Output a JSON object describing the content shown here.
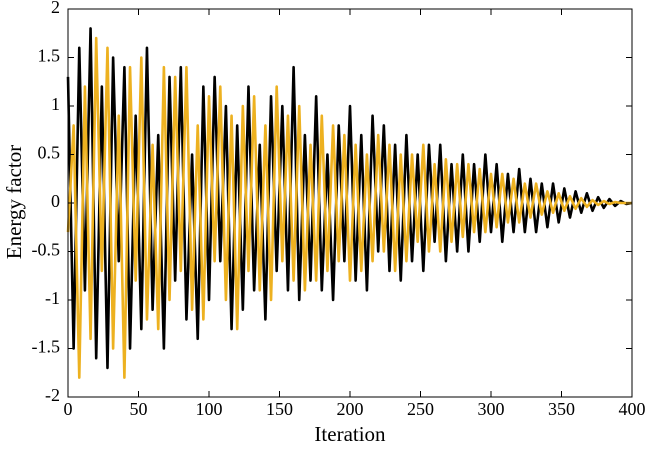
{
  "chart_data": {
    "type": "line",
    "xlabel": "Iteration",
    "ylabel": "Energy factor",
    "xlim": [
      0,
      400
    ],
    "xticks": [
      0,
      50,
      100,
      150,
      200,
      250,
      300,
      350,
      400
    ],
    "ylim": [
      -2,
      2
    ],
    "yticks": [
      -2,
      -1.5,
      -1,
      -0.5,
      0,
      0.5,
      1,
      1.5,
      2
    ],
    "x": [
      0,
      4,
      8,
      12,
      16,
      20,
      24,
      28,
      32,
      36,
      40,
      44,
      48,
      52,
      56,
      60,
      64,
      68,
      72,
      76,
      80,
      84,
      88,
      92,
      96,
      100,
      104,
      108,
      112,
      116,
      120,
      124,
      128,
      132,
      136,
      140,
      144,
      148,
      152,
      156,
      160,
      164,
      168,
      172,
      176,
      180,
      184,
      188,
      192,
      196,
      200,
      204,
      208,
      212,
      216,
      220,
      224,
      228,
      232,
      236,
      240,
      244,
      248,
      252,
      256,
      260,
      264,
      268,
      272,
      276,
      280,
      284,
      288,
      292,
      296,
      300,
      304,
      308,
      312,
      316,
      320,
      324,
      328,
      332,
      336,
      340,
      344,
      348,
      352,
      356,
      360,
      364,
      368,
      372,
      376,
      380,
      384,
      388,
      392,
      396,
      400
    ],
    "series": [
      {
        "color": "#000000",
        "values": [
          1.3,
          -1.5,
          1.6,
          -0.9,
          1.8,
          -1.6,
          1.2,
          -1.7,
          1.5,
          -0.6,
          1.4,
          -1.5,
          0.9,
          -1.3,
          1.6,
          -1.1,
          0.7,
          -1.5,
          1.3,
          -0.8,
          1.4,
          -1.2,
          0.5,
          -1.4,
          1.2,
          -1.0,
          1.3,
          -0.6,
          1.0,
          -1.3,
          0.8,
          -1.1,
          1.2,
          -0.9,
          0.6,
          -1.2,
          1.1,
          -0.7,
          1.0,
          -0.9,
          1.4,
          -1.0,
          0.7,
          -0.8,
          1.1,
          -0.9,
          0.5,
          -1.0,
          0.8,
          -0.6,
          1.0,
          -0.8,
          0.7,
          -0.9,
          0.9,
          -0.5,
          0.8,
          -0.7,
          0.6,
          -0.8,
          0.7,
          -0.6,
          0.5,
          -0.7,
          0.6,
          -0.4,
          0.6,
          -0.6,
          0.4,
          -0.5,
          0.5,
          -0.5,
          0.4,
          -0.4,
          0.5,
          -0.3,
          0.4,
          -0.4,
          0.3,
          -0.3,
          0.35,
          -0.3,
          0.25,
          -0.3,
          0.2,
          -0.25,
          0.2,
          -0.2,
          0.15,
          -0.15,
          0.12,
          -0.1,
          0.1,
          -0.08,
          0.06,
          -0.05,
          0.04,
          -0.03,
          0.02,
          -0.01,
          0
        ]
      },
      {
        "color": "#EDB120",
        "values": [
          -0.3,
          0.8,
          -1.8,
          1.2,
          -1.4,
          1.7,
          -0.7,
          1.6,
          -1.5,
          0.9,
          -1.8,
          1.4,
          -0.8,
          1.5,
          -1.2,
          0.6,
          -1.3,
          1.4,
          -1.0,
          1.3,
          -0.7,
          1.4,
          -1.1,
          0.8,
          -1.2,
          1.1,
          -0.6,
          1.2,
          -1.0,
          0.9,
          -1.3,
          1.0,
          -0.7,
          1.1,
          -0.9,
          0.8,
          -1.0,
          1.2,
          -0.6,
          0.9,
          -0.8,
          1.0,
          -0.9,
          0.6,
          -0.8,
          0.9,
          -0.7,
          0.8,
          -0.6,
          0.7,
          -0.8,
          0.6,
          -0.7,
          0.5,
          -0.6,
          0.7,
          -0.5,
          0.6,
          -0.7,
          0.5,
          -0.6,
          0.5,
          -0.4,
          0.6,
          -0.5,
          0.4,
          -0.5,
          0.45,
          -0.4,
          0.4,
          -0.35,
          0.4,
          -0.3,
          0.35,
          -0.3,
          0.3,
          -0.25,
          0.3,
          -0.2,
          0.25,
          -0.2,
          0.2,
          -0.15,
          0.2,
          -0.12,
          0.12,
          -0.1,
          0.1,
          -0.08,
          0.07,
          -0.06,
          0.05,
          -0.04,
          0.03,
          -0.02,
          0.02,
          -0.01,
          0.01,
          0,
          0,
          0
        ]
      }
    ]
  }
}
